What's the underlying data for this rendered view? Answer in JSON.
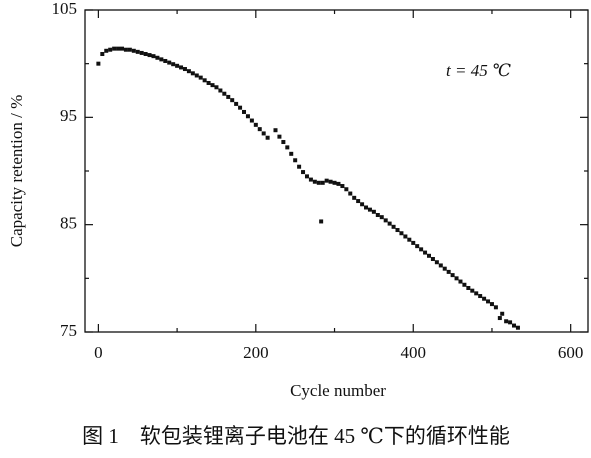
{
  "chart_data": {
    "type": "scatter",
    "title": "图 1　软包装锂离子电池在 45 ℃下的循环性能",
    "x_label": "Cycle number",
    "y_label": "Capacity retention / %",
    "annotation": "t = 45 ℃",
    "color": "#111111",
    "x": [
      0,
      5,
      10,
      15,
      20,
      25,
      30,
      35,
      40,
      45,
      50,
      55,
      60,
      65,
      70,
      75,
      80,
      85,
      90,
      95,
      100,
      105,
      110,
      115,
      120,
      125,
      130,
      135,
      140,
      145,
      150,
      155,
      160,
      165,
      170,
      175,
      180,
      185,
      190,
      195,
      200,
      205,
      210,
      215,
      225,
      230,
      235,
      240,
      245,
      250,
      255,
      260,
      265,
      270,
      275,
      280,
      283,
      285,
      290,
      295,
      300,
      305,
      310,
      315,
      320,
      325,
      330,
      335,
      340,
      345,
      350,
      355,
      360,
      365,
      370,
      375,
      380,
      385,
      390,
      395,
      400,
      405,
      410,
      415,
      420,
      425,
      430,
      435,
      440,
      445,
      450,
      455,
      460,
      465,
      470,
      475,
      480,
      485,
      490,
      495,
      500,
      505,
      510,
      513,
      518,
      523,
      528,
      533
    ],
    "values": [
      100.0,
      100.9,
      101.2,
      101.3,
      101.4,
      101.4,
      101.4,
      101.3,
      101.3,
      101.2,
      101.1,
      101.0,
      100.9,
      100.8,
      100.7,
      100.55,
      100.4,
      100.25,
      100.1,
      99.95,
      99.8,
      99.65,
      99.5,
      99.3,
      99.1,
      98.9,
      98.7,
      98.45,
      98.2,
      98.0,
      97.8,
      97.5,
      97.2,
      96.9,
      96.6,
      96.25,
      95.9,
      95.5,
      95.1,
      94.7,
      94.3,
      93.9,
      93.5,
      93.1,
      93.8,
      93.2,
      92.7,
      92.2,
      91.6,
      91.0,
      90.4,
      89.9,
      89.5,
      89.2,
      89.0,
      88.9,
      85.3,
      88.9,
      89.1,
      89.0,
      88.9,
      88.8,
      88.6,
      88.3,
      87.9,
      87.5,
      87.2,
      86.9,
      86.6,
      86.4,
      86.2,
      85.9,
      85.7,
      85.4,
      85.1,
      84.8,
      84.5,
      84.2,
      83.9,
      83.6,
      83.3,
      83.0,
      82.7,
      82.4,
      82.1,
      81.8,
      81.5,
      81.2,
      80.9,
      80.6,
      80.3,
      80.0,
      79.7,
      79.4,
      79.1,
      78.85,
      78.6,
      78.35,
      78.1,
      77.85,
      77.6,
      77.3,
      76.3,
      76.7,
      76.0,
      75.9,
      75.6,
      75.4
    ],
    "xlim": [
      -17,
      622
    ],
    "ylim": [
      75,
      105
    ],
    "xticks": [
      0,
      200,
      400,
      600
    ],
    "yticks": [
      75,
      85,
      95,
      105
    ],
    "xminorticks": [
      100,
      300,
      500
    ],
    "yminorticks": [
      80,
      90,
      100
    ]
  }
}
